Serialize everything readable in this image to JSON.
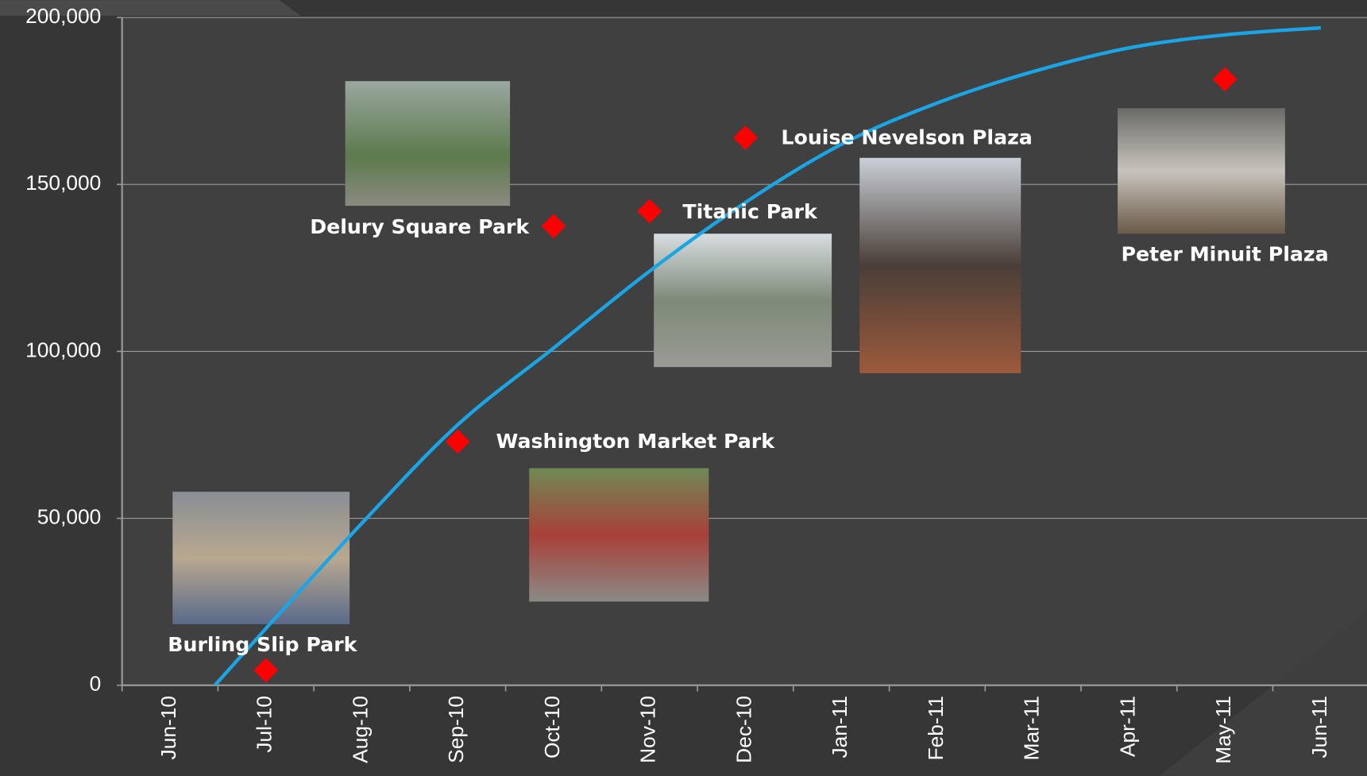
{
  "chart_data": {
    "type": "scatter",
    "categories": [
      "Jun-10",
      "Jul-10",
      "Aug-10",
      "Sep-10",
      "Oct-10",
      "Nov-10",
      "Dec-10",
      "Jan-11",
      "Feb-11",
      "Mar-11",
      "Apr-11",
      "May-11",
      "Jun-11"
    ],
    "points": [
      {
        "label": "Burling Slip Park",
        "x": "Jul-10",
        "value": 4500
      },
      {
        "label": "Washington Market Park",
        "x": "Sep-10",
        "value": 73000
      },
      {
        "label": "Delury Square Park",
        "x": "Oct-10",
        "value": 137500
      },
      {
        "label": "Titanic Park",
        "x": "Nov-10",
        "value": 142000
      },
      {
        "label": "Louise Nevelson Plaza",
        "x": "Dec-10",
        "value": 164000
      },
      {
        "label": "Peter Minuit Plaza",
        "x": "May-11",
        "value": 181500
      }
    ],
    "point_color": "#ff0000",
    "trendline": {
      "color": "#1aa6e6",
      "values": [
        -15000,
        17000,
        48500,
        78000,
        101000,
        124000,
        144600,
        162000,
        174400,
        183800,
        190900,
        194800,
        196900
      ]
    },
    "ylim": [
      0,
      200000
    ],
    "yticks": [
      0,
      {
        "value": 50000,
        "label": "50,000"
      },
      {
        "value": 100000,
        "label": "100,000"
      },
      {
        "value": 150000,
        "label": "150,000"
      },
      {
        "value": 200000,
        "label": "200,000"
      }
    ],
    "grid": true
  }
}
